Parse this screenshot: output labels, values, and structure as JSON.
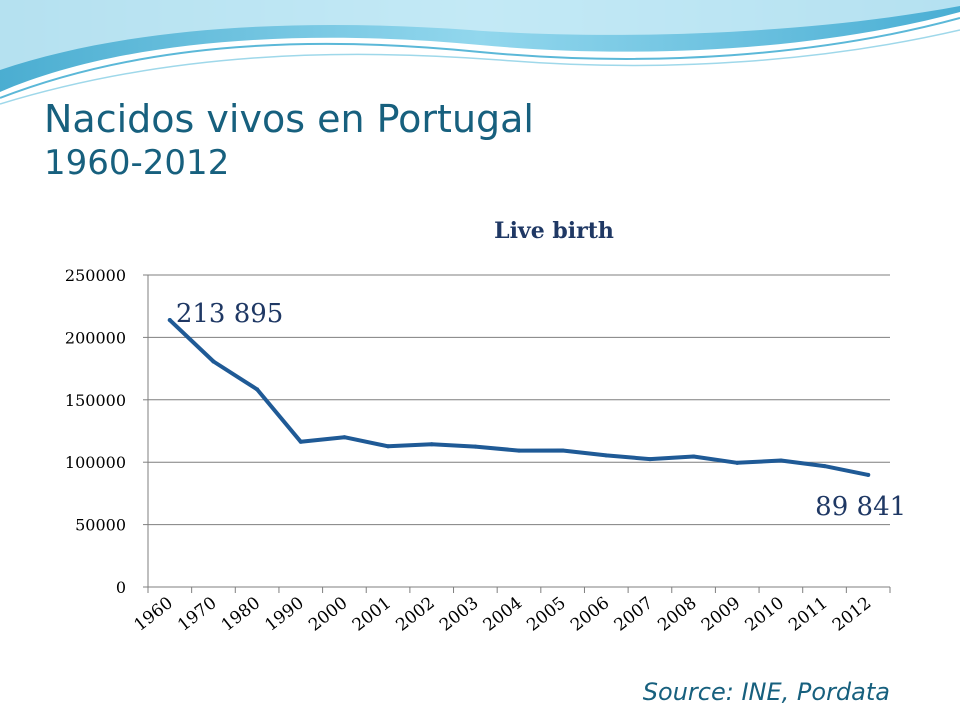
{
  "slide": {
    "title": "Nacidos vivos en Portugal",
    "subtitle": "1960-2012",
    "source": "Source: INE, Pordata"
  },
  "colors": {
    "title": "#17607e",
    "line": "#1f5a96",
    "grid": "#7f7f7f",
    "text": "#000000"
  },
  "chart_data": {
    "type": "line",
    "title": "Live birth",
    "categories": [
      "1960",
      "1970",
      "1980",
      "1990",
      "2000",
      "2001",
      "2002",
      "2003",
      "2004",
      "2005",
      "2006",
      "2007",
      "2008",
      "2009",
      "2010",
      "2011",
      "2012"
    ],
    "series": [
      {
        "values": [
          213895,
          180690,
          158352,
          116383,
          120008,
          112774,
          114383,
          112515,
          109298,
          109399,
          105449,
          102492,
          104594,
          99491,
          101381,
          96856,
          89841
        ]
      }
    ],
    "ylim": [
      0,
      250000
    ],
    "yticks": [
      0,
      50000,
      100000,
      150000,
      200000,
      250000
    ],
    "data_labels": [
      {
        "index": 0,
        "text": "213 895"
      },
      {
        "index": 16,
        "text": "89 841"
      }
    ],
    "grid": true,
    "legend": "none"
  }
}
